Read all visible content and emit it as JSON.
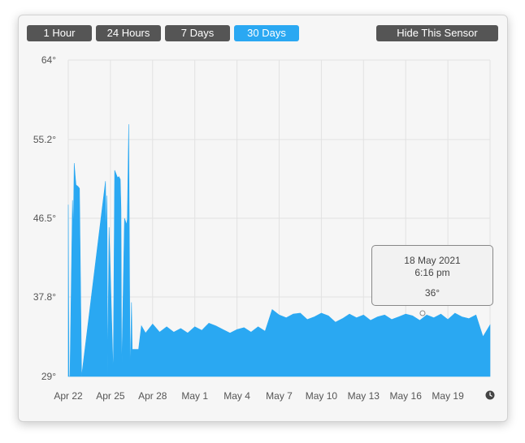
{
  "toolbar": {
    "range_buttons": [
      "1 Hour",
      "24 Hours",
      "7 Days",
      "30 Days"
    ],
    "active_range": "30 Days",
    "hide_label": "Hide This Sensor"
  },
  "tooltip": {
    "date": "18 May 2021",
    "time": "6:16 pm",
    "value": "36°"
  },
  "colors": {
    "accent": "#2aa8f2",
    "button_bg": "#555555",
    "grid": "#e2e2e2"
  },
  "icons": {
    "time_axis": "clock-icon"
  },
  "chart_data": {
    "type": "area",
    "ylim": [
      29,
      64
    ],
    "yticks": [
      "64°",
      "55.2°",
      "46.5°",
      "37.8°",
      "29°"
    ],
    "ytick_values": [
      64,
      55.2,
      46.5,
      37.8,
      29
    ],
    "xtick_labels": [
      "Apr 22",
      "Apr 25",
      "Apr 28",
      "May 1",
      "May 4",
      "May 7",
      "May 10",
      "May 13",
      "May 16",
      "May 19"
    ],
    "xlim_days": [
      0,
      30
    ],
    "series": [
      {
        "x": [
          0,
          0.05,
          0.12,
          0.3,
          0.36,
          0.42,
          0.5,
          0.55,
          0.62,
          0.7,
          0.8,
          0.95,
          2.6,
          2.65,
          2.7,
          2.75,
          2.8,
          2.9,
          3.2,
          3.3,
          3.5,
          3.6,
          3.7,
          3.75,
          3.8,
          4.0,
          4.15,
          4.2,
          4.3,
          4.4,
          4.5,
          4.55,
          5.0,
          5.2,
          5.5,
          6.0,
          6.5,
          7.0,
          7.5,
          8.0,
          8.5,
          9.0,
          9.5,
          10.0,
          10.5,
          11.0,
          11.5,
          12.0,
          12.5,
          13.0,
          13.5,
          14.0,
          14.5,
          15.0,
          15.5,
          16.0,
          16.5,
          17.0,
          17.5,
          18.0,
          18.5,
          19.0,
          19.5,
          20.0,
          20.5,
          21.0,
          21.5,
          22.0,
          22.5,
          23.0,
          23.5,
          24.0,
          24.5,
          25.0,
          25.5,
          26.0,
          26.5,
          27.0,
          27.5,
          28.0,
          28.5,
          29.0,
          29.5,
          30.0
        ],
        "y": [
          48,
          29,
          29,
          48.5,
          45,
          52.6,
          51,
          50.2,
          50.1,
          50,
          49.8,
          29,
          50,
          50.6,
          44.3,
          49,
          29,
          45.5,
          29,
          51.8,
          51,
          51.1,
          50.8,
          47.5,
          29,
          46.5,
          45.8,
          46.4,
          56.9,
          29,
          37.2,
          32,
          32,
          34.6,
          33.8,
          34.8,
          33.9,
          34.5,
          33.9,
          34.3,
          33.8,
          34.5,
          34.1,
          34.9,
          34.6,
          34.2,
          33.8,
          34.2,
          34.4,
          33.9,
          34.5,
          34.0,
          36.4,
          35.8,
          35.5,
          35.9,
          36.0,
          35.3,
          35.6,
          36.0,
          35.7,
          35.0,
          35.4,
          35.9,
          35.5,
          35.8,
          35.2,
          35.6,
          35.8,
          35.3,
          35.6,
          35.9,
          35.7,
          35.2,
          35.8,
          35.5,
          35.9,
          35.3,
          36.0,
          35.6,
          35.4,
          35.8,
          33.4,
          34.7
        ]
      }
    ]
  }
}
